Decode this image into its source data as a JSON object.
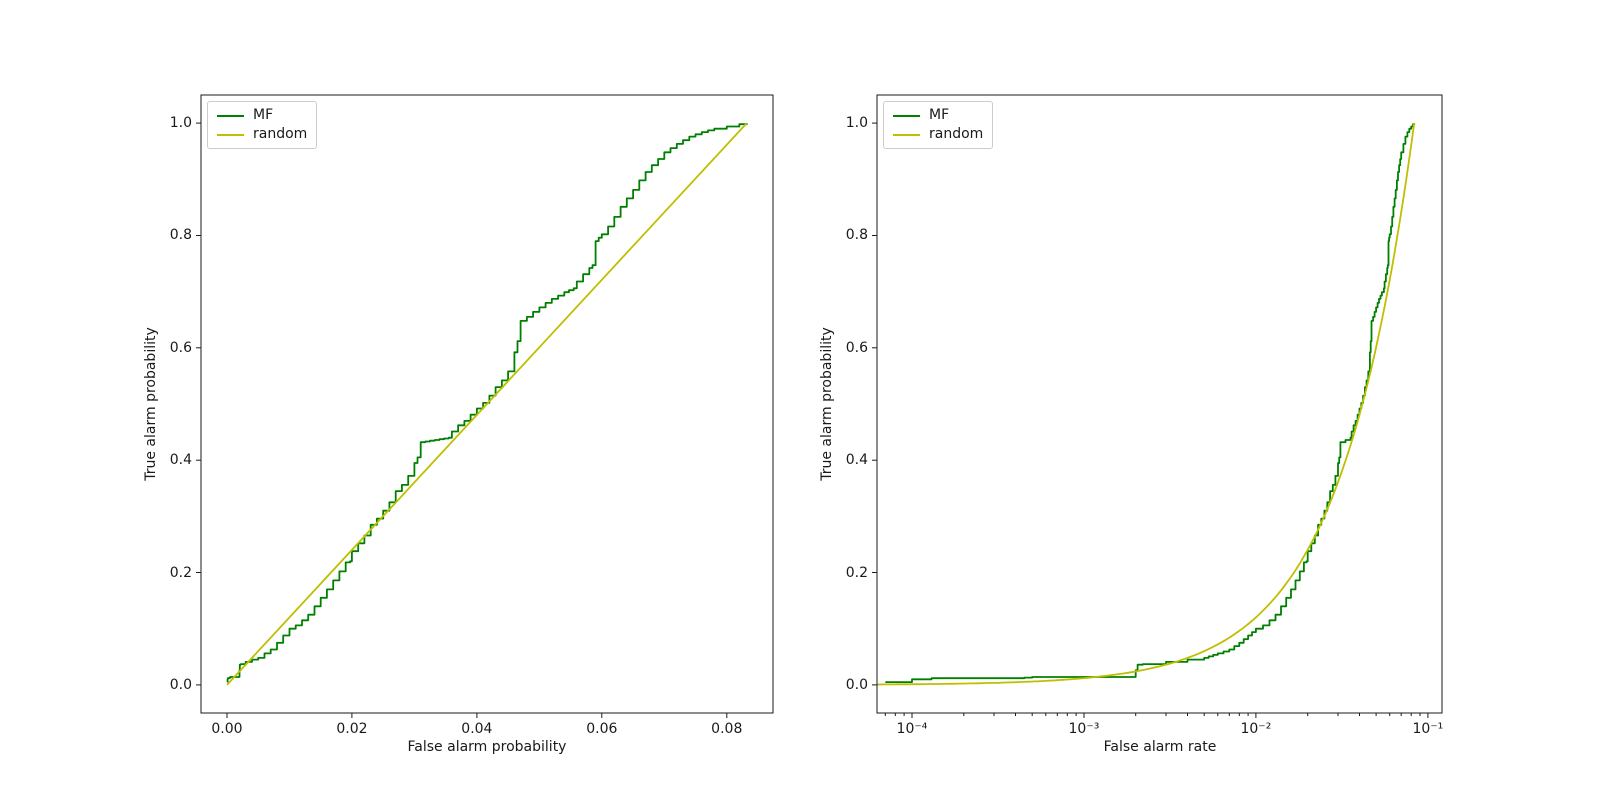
{
  "figure": {
    "background": "#ffffff"
  },
  "chart_data": [
    {
      "type": "line",
      "title": "",
      "xlabel": "False alarm probability",
      "ylabel": "True alarm probability",
      "xscale": "linear",
      "xlim": [
        -0.00416,
        0.0874
      ],
      "ylim": [
        -0.05,
        1.05
      ],
      "grid": false,
      "xticks": {
        "values": [
          0.0,
          0.02,
          0.04,
          0.06,
          0.08
        ],
        "labels": [
          "0.00",
          "0.02",
          "0.04",
          "0.06",
          "0.08"
        ]
      },
      "yticks": {
        "values": [
          0.0,
          0.2,
          0.4,
          0.6,
          0.8,
          1.0
        ],
        "labels": [
          "0.0",
          "0.2",
          "0.4",
          "0.6",
          "0.8",
          "1.0"
        ]
      },
      "legend": {
        "position": "upper-left",
        "entries": [
          {
            "label": "MF",
            "color": "#008000"
          },
          {
            "label": "random",
            "color": "#bfbf00"
          }
        ]
      },
      "series": [
        {
          "name": "MF",
          "color": "#008000",
          "style": "steps",
          "points": [
            [
              7e-05,
              0.005
            ],
            [
              0.0001,
              0.01
            ],
            [
              0.00013,
              0.012
            ],
            [
              0.00045,
              0.013
            ],
            [
              0.0005,
              0.014
            ],
            [
              0.0019,
              0.014
            ],
            [
              0.002,
              0.026
            ],
            [
              0.00205,
              0.036
            ],
            [
              0.0022,
              0.037
            ],
            [
              0.003,
              0.041
            ],
            [
              0.004,
              0.045
            ],
            [
              0.005,
              0.048
            ],
            [
              0.006,
              0.056
            ],
            [
              0.007,
              0.063
            ],
            [
              0.008,
              0.075
            ],
            [
              0.009,
              0.088
            ],
            [
              0.01,
              0.1
            ],
            [
              0.011,
              0.106
            ],
            [
              0.012,
              0.115
            ],
            [
              0.013,
              0.125
            ],
            [
              0.014,
              0.14
            ],
            [
              0.015,
              0.155
            ],
            [
              0.016,
              0.17
            ],
            [
              0.017,
              0.186
            ],
            [
              0.018,
              0.202
            ],
            [
              0.019,
              0.218
            ],
            [
              0.0197,
              0.22
            ],
            [
              0.02,
              0.238
            ],
            [
              0.021,
              0.252
            ],
            [
              0.022,
              0.266
            ],
            [
              0.023,
              0.285
            ],
            [
              0.024,
              0.296
            ],
            [
              0.025,
              0.31
            ],
            [
              0.026,
              0.325
            ],
            [
              0.027,
              0.345
            ],
            [
              0.028,
              0.356
            ],
            [
              0.029,
              0.372
            ],
            [
              0.03,
              0.395
            ],
            [
              0.0305,
              0.405
            ],
            [
              0.031,
              0.432
            ],
            [
              0.0355,
              0.44
            ],
            [
              0.036,
              0.451
            ],
            [
              0.037,
              0.462
            ],
            [
              0.038,
              0.47
            ],
            [
              0.039,
              0.481
            ],
            [
              0.04,
              0.492
            ],
            [
              0.041,
              0.502
            ],
            [
              0.042,
              0.515
            ],
            [
              0.043,
              0.53
            ],
            [
              0.044,
              0.542
            ],
            [
              0.045,
              0.558
            ],
            [
              0.046,
              0.592
            ],
            [
              0.0465,
              0.612
            ],
            [
              0.047,
              0.648
            ],
            [
              0.048,
              0.655
            ],
            [
              0.049,
              0.664
            ],
            [
              0.05,
              0.672
            ],
            [
              0.051,
              0.68
            ],
            [
              0.052,
              0.687
            ],
            [
              0.053,
              0.693
            ],
            [
              0.054,
              0.699
            ],
            [
              0.0555,
              0.706
            ],
            [
              0.056,
              0.718
            ],
            [
              0.057,
              0.731
            ],
            [
              0.058,
              0.742
            ],
            [
              0.0585,
              0.747
            ],
            [
              0.059,
              0.79
            ],
            [
              0.0595,
              0.796
            ],
            [
              0.06,
              0.802
            ],
            [
              0.061,
              0.816
            ],
            [
              0.062,
              0.833
            ],
            [
              0.063,
              0.851
            ],
            [
              0.064,
              0.866
            ],
            [
              0.065,
              0.881
            ],
            [
              0.066,
              0.898
            ],
            [
              0.067,
              0.913
            ],
            [
              0.068,
              0.925
            ],
            [
              0.069,
              0.936
            ],
            [
              0.07,
              0.948
            ],
            [
              0.072,
              0.963
            ],
            [
              0.074,
              0.976
            ],
            [
              0.076,
              0.984
            ],
            [
              0.078,
              0.99
            ],
            [
              0.08,
              0.994
            ],
            [
              0.082,
              0.998
            ],
            [
              0.0832,
              1.0
            ]
          ]
        },
        {
          "name": "random",
          "color": "#bfbf00",
          "style": "line",
          "points": [
            [
              0.0,
              0.0
            ],
            [
              0.0832,
              1.0
            ]
          ]
        }
      ]
    },
    {
      "type": "line",
      "title": "",
      "xlabel": "False alarm rate",
      "ylabel": "True alarm probability",
      "xscale": "log",
      "xlim": [
        6.26e-05,
        0.1208
      ],
      "ylim": [
        -0.05,
        1.05
      ],
      "grid": false,
      "xticks": {
        "exponents": [
          -4,
          -3,
          -2,
          -1
        ],
        "labels": [
          "10⁻⁴",
          "10⁻³",
          "10⁻²",
          "10⁻¹"
        ]
      },
      "yticks": {
        "values": [
          0.0,
          0.2,
          0.4,
          0.6,
          0.8,
          1.0
        ],
        "labels": [
          "0.0",
          "0.2",
          "0.4",
          "0.6",
          "0.8",
          "1.0"
        ]
      },
      "legend": {
        "position": "upper-left",
        "entries": [
          {
            "label": "MF",
            "color": "#008000"
          },
          {
            "label": "random",
            "color": "#bfbf00"
          }
        ]
      },
      "series": [
        {
          "name": "MF",
          "color": "#008000",
          "style": "steps",
          "points": [
            [
              7e-05,
              0.005
            ],
            [
              0.0001,
              0.01
            ],
            [
              0.00013,
              0.012
            ],
            [
              0.00045,
              0.013
            ],
            [
              0.0005,
              0.014
            ],
            [
              0.0019,
              0.014
            ],
            [
              0.002,
              0.026
            ],
            [
              0.00205,
              0.036
            ],
            [
              0.0022,
              0.037
            ],
            [
              0.003,
              0.041
            ],
            [
              0.004,
              0.045
            ],
            [
              0.005,
              0.048
            ],
            [
              0.006,
              0.056
            ],
            [
              0.007,
              0.063
            ],
            [
              0.008,
              0.075
            ],
            [
              0.009,
              0.088
            ],
            [
              0.01,
              0.1
            ],
            [
              0.011,
              0.106
            ],
            [
              0.012,
              0.115
            ],
            [
              0.013,
              0.125
            ],
            [
              0.014,
              0.14
            ],
            [
              0.015,
              0.155
            ],
            [
              0.016,
              0.17
            ],
            [
              0.017,
              0.186
            ],
            [
              0.018,
              0.202
            ],
            [
              0.019,
              0.218
            ],
            [
              0.0197,
              0.22
            ],
            [
              0.02,
              0.238
            ],
            [
              0.021,
              0.252
            ],
            [
              0.022,
              0.266
            ],
            [
              0.023,
              0.285
            ],
            [
              0.024,
              0.296
            ],
            [
              0.025,
              0.31
            ],
            [
              0.026,
              0.325
            ],
            [
              0.027,
              0.345
            ],
            [
              0.028,
              0.356
            ],
            [
              0.029,
              0.372
            ],
            [
              0.03,
              0.395
            ],
            [
              0.0305,
              0.405
            ],
            [
              0.031,
              0.432
            ],
            [
              0.0355,
              0.44
            ],
            [
              0.036,
              0.451
            ],
            [
              0.037,
              0.462
            ],
            [
              0.038,
              0.47
            ],
            [
              0.039,
              0.481
            ],
            [
              0.04,
              0.492
            ],
            [
              0.041,
              0.502
            ],
            [
              0.042,
              0.515
            ],
            [
              0.043,
              0.53
            ],
            [
              0.044,
              0.542
            ],
            [
              0.045,
              0.558
            ],
            [
              0.046,
              0.592
            ],
            [
              0.0465,
              0.612
            ],
            [
              0.047,
              0.648
            ],
            [
              0.048,
              0.655
            ],
            [
              0.049,
              0.664
            ],
            [
              0.05,
              0.672
            ],
            [
              0.051,
              0.68
            ],
            [
              0.052,
              0.687
            ],
            [
              0.053,
              0.693
            ],
            [
              0.054,
              0.699
            ],
            [
              0.0555,
              0.706
            ],
            [
              0.056,
              0.718
            ],
            [
              0.057,
              0.731
            ],
            [
              0.058,
              0.742
            ],
            [
              0.0585,
              0.747
            ],
            [
              0.059,
              0.79
            ],
            [
              0.0595,
              0.796
            ],
            [
              0.06,
              0.802
            ],
            [
              0.061,
              0.816
            ],
            [
              0.062,
              0.833
            ],
            [
              0.063,
              0.851
            ],
            [
              0.064,
              0.866
            ],
            [
              0.065,
              0.881
            ],
            [
              0.066,
              0.898
            ],
            [
              0.067,
              0.913
            ],
            [
              0.068,
              0.925
            ],
            [
              0.069,
              0.936
            ],
            [
              0.07,
              0.948
            ],
            [
              0.072,
              0.963
            ],
            [
              0.074,
              0.976
            ],
            [
              0.076,
              0.984
            ],
            [
              0.078,
              0.99
            ],
            [
              0.08,
              0.994
            ],
            [
              0.082,
              0.998
            ],
            [
              0.0832,
              1.0
            ]
          ]
        },
        {
          "name": "random",
          "color": "#bfbf00",
          "style": "line",
          "points": [
            [
              6.26e-05,
              0.00075
            ],
            [
              0.0832,
              1.0
            ]
          ]
        }
      ]
    }
  ]
}
